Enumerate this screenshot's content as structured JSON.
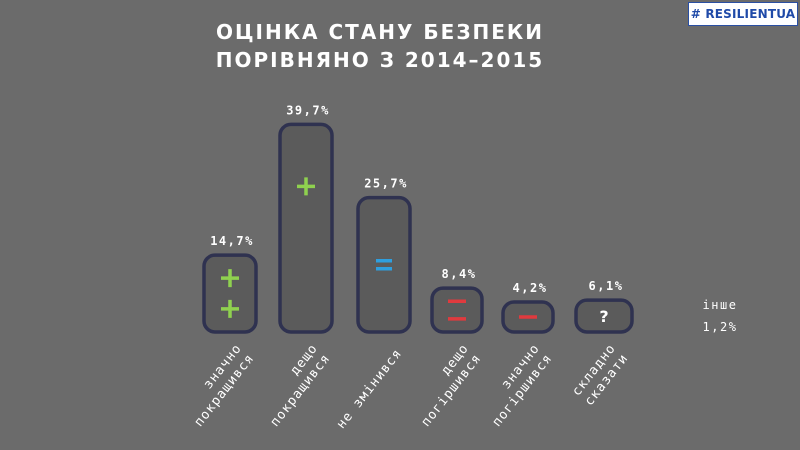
{
  "logo": "# RESILIENTUA",
  "title_line1": "ОЦІНКА СТАНУ БЕЗПЕКИ",
  "title_line2": "ПОРІВНЯНО З 2014–2015",
  "other": {
    "label": "інше",
    "value": "1,2%"
  },
  "colors": {
    "plus": "#8fd14f",
    "equal": "#2e9fdf",
    "minus": "#e03a3e",
    "question": "#ffffff",
    "box_stroke": "#2f3250",
    "box_fill": "#5b5b5b"
  },
  "chart_data": {
    "type": "bar",
    "title": "ОЦІНКА СТАНУ БЕЗПЕКИ ПОРІВНЯНО З 2014–2015",
    "categories": [
      [
        "значно",
        "покращився"
      ],
      [
        "дещо",
        "покращився"
      ],
      [
        "не змінився"
      ],
      [
        "дещо",
        "погіршився"
      ],
      [
        "значно",
        "погіршився"
      ],
      [
        "складно",
        "сказати"
      ]
    ],
    "values": [
      14.7,
      39.7,
      25.7,
      8.4,
      4.2,
      6.1
    ],
    "value_labels": [
      "14,7%",
      "39,7%",
      "25,7%",
      "8,4%",
      "4,2%",
      "6,1%"
    ],
    "symbols": [
      {
        "glyph": "+",
        "count": 2,
        "color": "plus"
      },
      {
        "glyph": "+",
        "count": 1,
        "color": "plus"
      },
      {
        "glyph": "=",
        "count": 1,
        "color": "equal"
      },
      {
        "glyph": "−",
        "count": 2,
        "color": "minus"
      },
      {
        "glyph": "−",
        "count": 1,
        "color": "minus"
      },
      {
        "glyph": "?",
        "count": 1,
        "color": "question"
      }
    ]
  }
}
